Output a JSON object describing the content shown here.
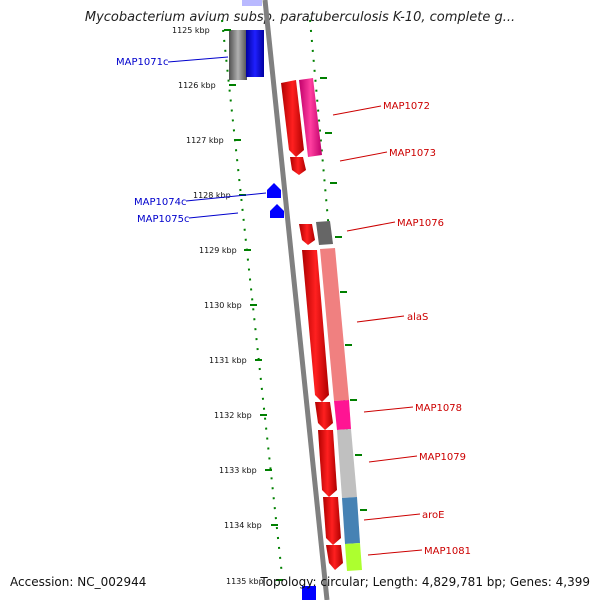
{
  "title": "Mycobacterium avium subsp. paratuberculosis K-10, complete g...",
  "accession": "Accession: NC_002944",
  "stats": "Topology: circular; Length: 4,829,781 bp; Genes: 4,399",
  "ticks": [
    "1125 kbp",
    "1126 kbp",
    "1127 kbp",
    "1128 kbp",
    "1129 kbp",
    "1130 kbp",
    "1131 kbp",
    "1132 kbp",
    "1133 kbp",
    "1134 kbp",
    "1135 kbp"
  ],
  "genes_left": [
    "MAP1071c",
    "MAP1074c",
    "MAP1075c"
  ],
  "genes_right": [
    "MAP1072",
    "MAP1073",
    "MAP1076",
    "alaS",
    "MAP1078",
    "MAP1079",
    "aroE",
    "MAP1081"
  ],
  "colors": {
    "red": "#ff0000",
    "blue": "#0000ff",
    "green": "#008000",
    "grey": "#808080",
    "pink": "#ff1493",
    "salmon": "#f08080",
    "steel": "#4682b4",
    "lime": "#adff2f",
    "label_left": "#0000cc",
    "label_right": "#cc0000"
  }
}
